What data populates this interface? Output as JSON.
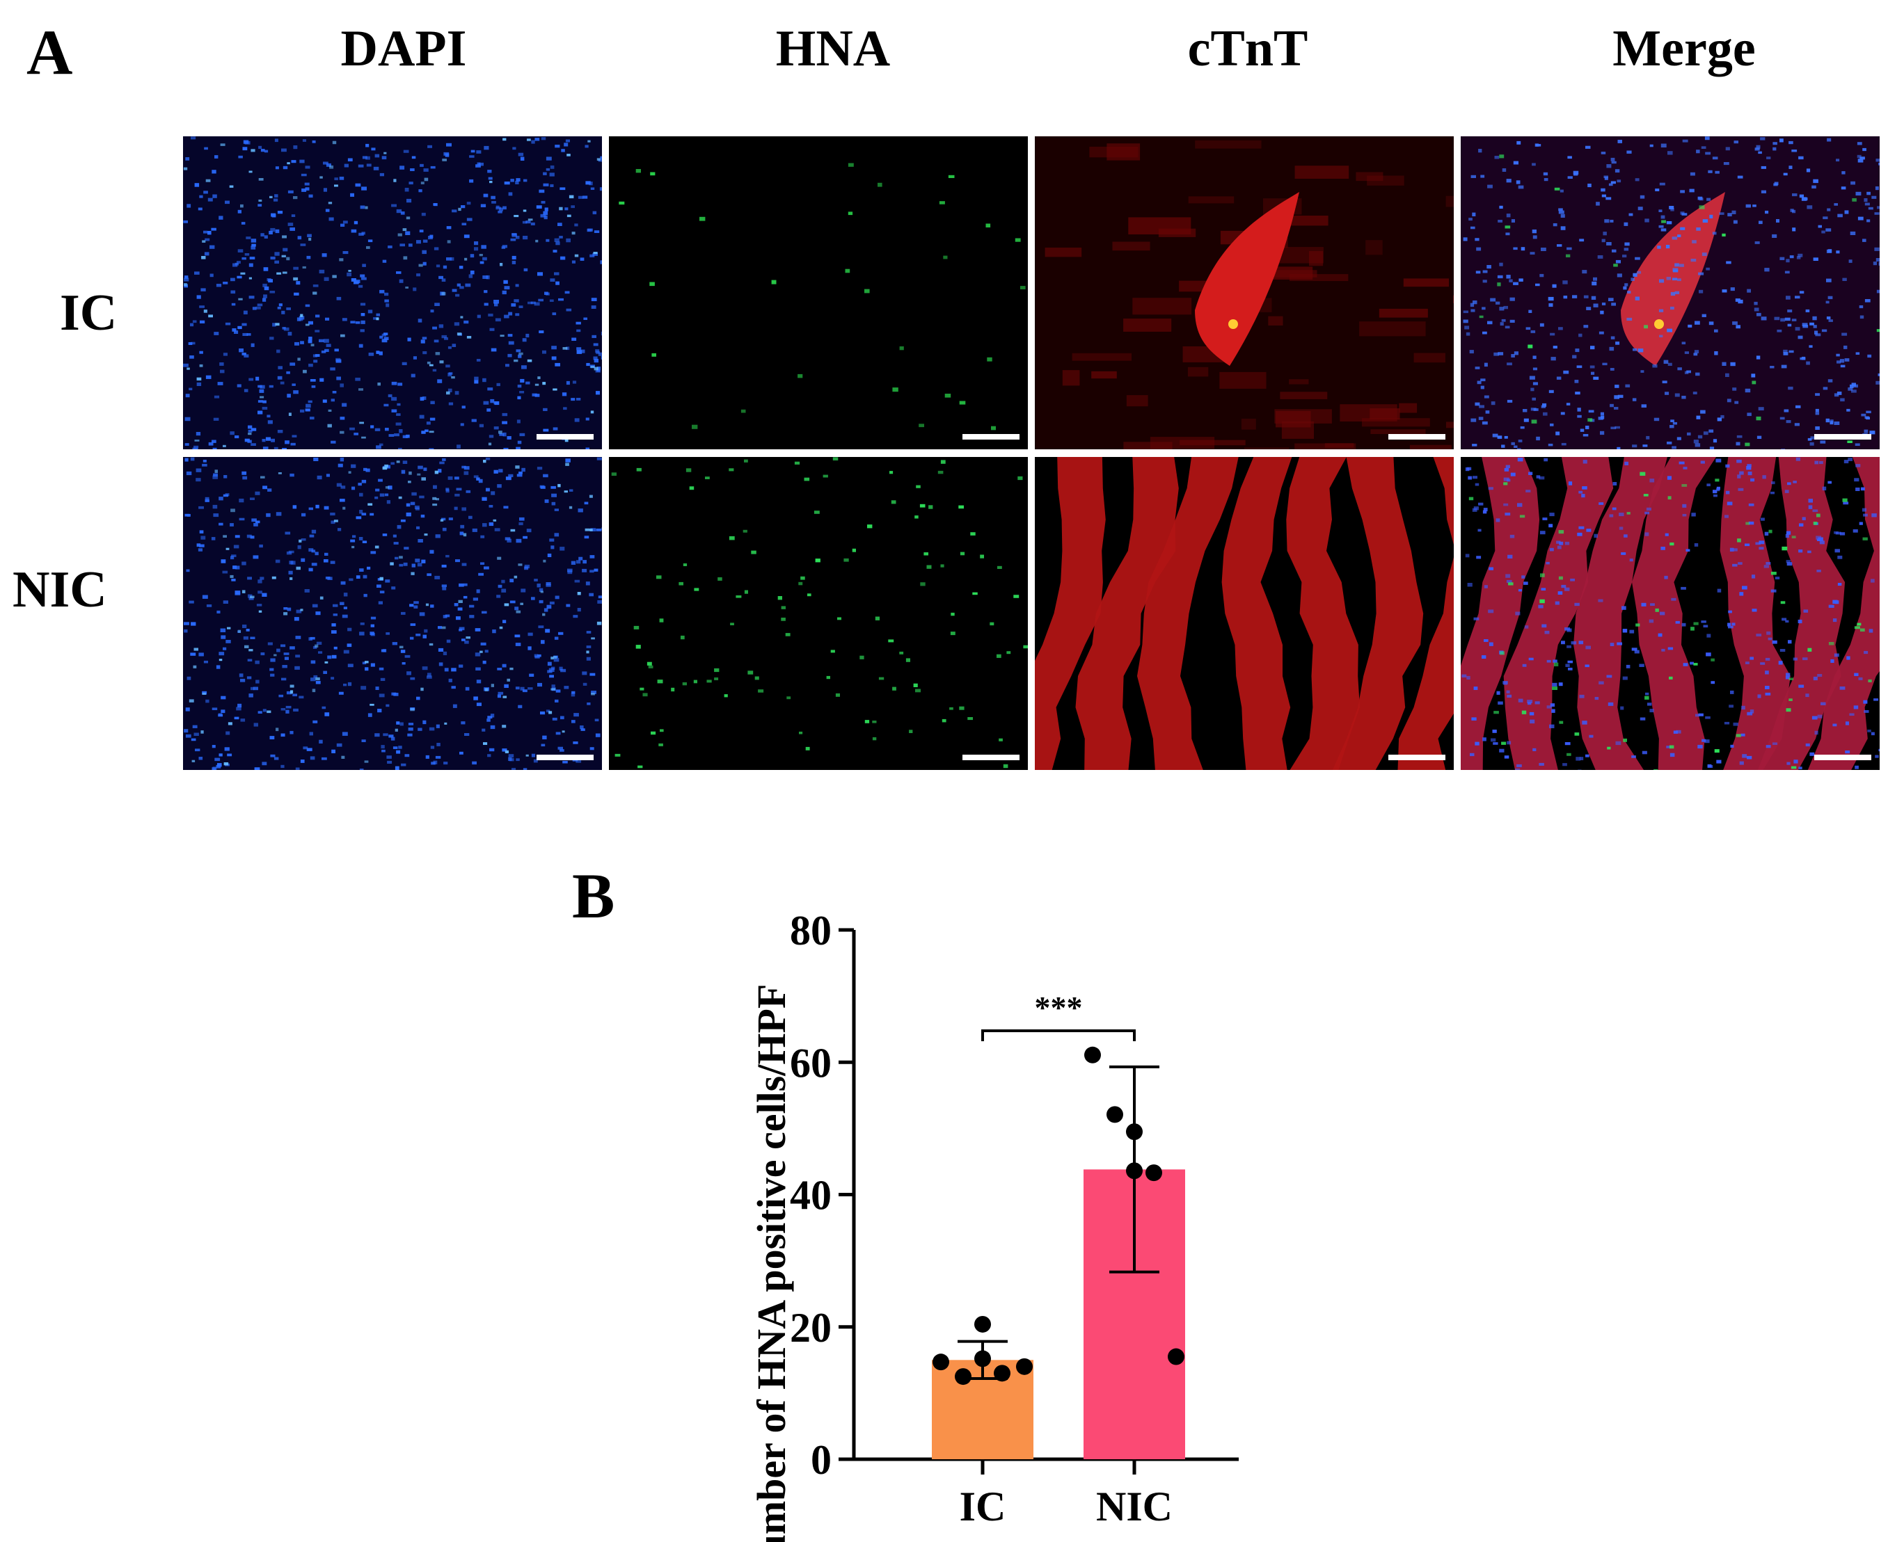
{
  "figure": {
    "panel_a": {
      "letter": "A",
      "columns": [
        "DAPI",
        "HNA",
        "cTnT",
        "Merge"
      ],
      "rows": [
        "IC",
        "NIC"
      ]
    },
    "panel_b": {
      "letter": "B"
    }
  },
  "chart_data": {
    "type": "bar",
    "categories": [
      "IC",
      "NIC"
    ],
    "values": [
      15,
      43.8
    ],
    "error": [
      2.8,
      15.5
    ],
    "points": [
      [
        14.7,
        12.5,
        15.2,
        20.4,
        13.0,
        14.0
      ],
      [
        61.1,
        52.1,
        49.5,
        43.6,
        43.3,
        15.5
      ]
    ],
    "colors": [
      "#F9914A",
      "#FB4A74"
    ],
    "ylabel": "Number of HNA positive cells/HPF",
    "xlabel": "",
    "ylim": [
      0,
      80
    ],
    "yticks": [
      0,
      20,
      40,
      60,
      80
    ],
    "significance": {
      "from": "IC",
      "to": "NIC",
      "label": "***"
    },
    "grid": false
  }
}
